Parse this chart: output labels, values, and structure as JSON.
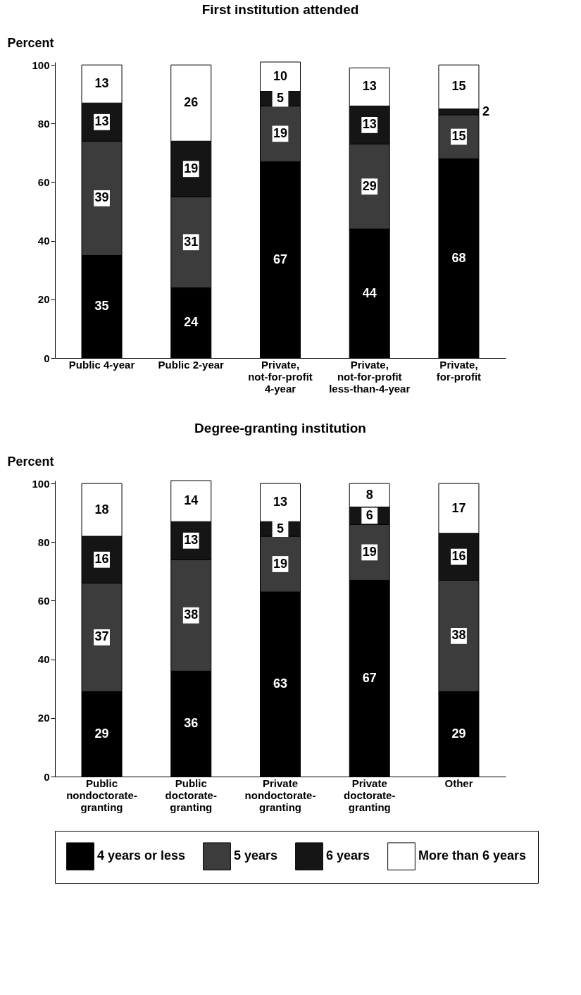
{
  "chart_data": [
    {
      "type": "bar",
      "title": "First institution attended",
      "ylabel": "Percent",
      "stacked": true,
      "data_labels": true,
      "legend": "bottom",
      "grid": false,
      "categories": [
        "Public 4-year",
        "Public 2-year",
        "Private, not-for-profit 4-year",
        "Private, not-for-profit less-than-4-year",
        "Private, for-profit"
      ],
      "ylim": [
        0,
        101
      ],
      "yticks": [
        0,
        20,
        40,
        60,
        80,
        100
      ],
      "series": [
        {
          "name": "4 years or less",
          "color": "#000000",
          "values": [
            35,
            24,
            67,
            44,
            68
          ]
        },
        {
          "name": "5 years",
          "color": "#3c3c3c",
          "values": [
            39,
            31,
            19,
            29,
            15
          ]
        },
        {
          "name": "6 years",
          "color": "#151515",
          "values": [
            13,
            19,
            5,
            13,
            2
          ]
        },
        {
          "name": "More than 6 years",
          "color": "#ffffff",
          "values": [
            13,
            26,
            10,
            13,
            15
          ]
        }
      ]
    },
    {
      "type": "bar",
      "title": "Degree-granting institution",
      "ylabel": "Percent",
      "stacked": true,
      "data_labels": true,
      "legend": "bottom",
      "grid": false,
      "categories": [
        "Public nondoctorate-granting",
        "Public doctorate-granting",
        "Private nondoctorate-granting",
        "Private doctorate-granting",
        "Other"
      ],
      "ylim": [
        0,
        101
      ],
      "yticks": [
        0,
        20,
        40,
        60,
        80,
        100
      ],
      "series": [
        {
          "name": "4 years or less",
          "color": "#000000",
          "values": [
            29,
            36,
            63,
            67,
            29
          ]
        },
        {
          "name": "5 years",
          "color": "#3c3c3c",
          "values": [
            37,
            38,
            19,
            19,
            38
          ]
        },
        {
          "name": "6 years",
          "color": "#151515",
          "values": [
            16,
            13,
            5,
            6,
            16
          ]
        },
        {
          "name": "More than 6 years",
          "color": "#ffffff",
          "values": [
            18,
            14,
            13,
            8,
            17
          ]
        }
      ]
    }
  ]
}
